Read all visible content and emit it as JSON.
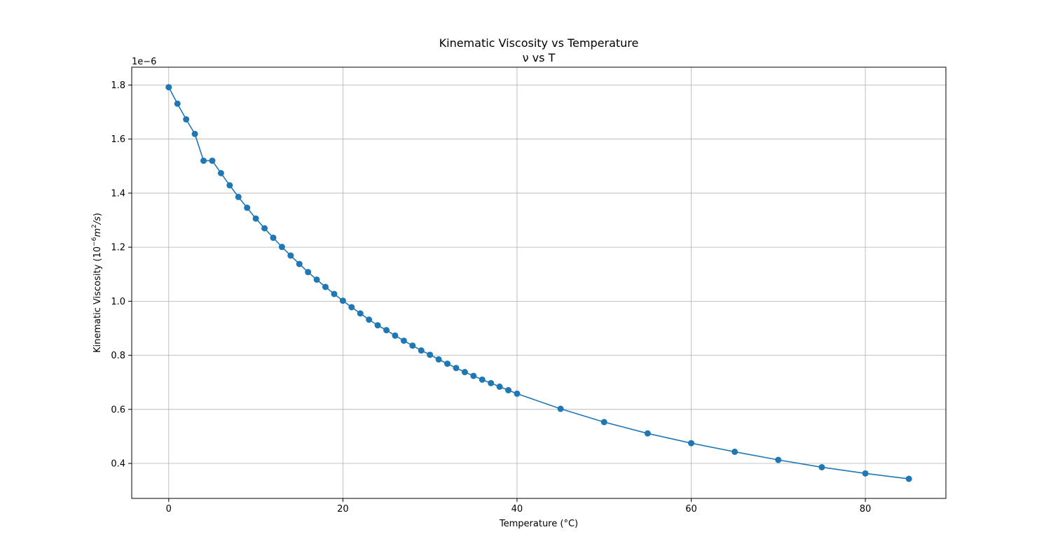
{
  "chart_data": {
    "type": "line",
    "title": "Kinematic Viscosity vs Temperature",
    "subtitle": "ν vs T",
    "xlabel": "Temperature (°C)",
    "ylabel_prefix": "Kinematic Viscosity (",
    "ylabel_math_base": "10",
    "ylabel_math_exp": "−6",
    "ylabel_math_unit": "m",
    "ylabel_math_unit_exp": "2",
    "ylabel_math_tail": "/s",
    "ylabel_suffix": ")",
    "offset_label": "1e−6",
    "xlim": [
      -4.25,
      89.25
    ],
    "ylim": [
      0.2706,
      1.866
    ],
    "xticks": [
      0,
      20,
      40,
      60,
      80
    ],
    "xtick_labels": [
      "0",
      "20",
      "40",
      "60",
      "80"
    ],
    "yticks": [
      0.4,
      0.6,
      0.8,
      1.0,
      1.2,
      1.4,
      1.6,
      1.8
    ],
    "ytick_labels": [
      "0.4",
      "0.6",
      "0.8",
      "1.0",
      "1.2",
      "1.4",
      "1.6",
      "1.8"
    ],
    "grid": true,
    "color": "#1f77b4",
    "marker": "circle",
    "series": [
      {
        "x": [
          0,
          1,
          2,
          3,
          4,
          5,
          6,
          7,
          8,
          9,
          10,
          11,
          12,
          13,
          14,
          15,
          16,
          17,
          18,
          19,
          20,
          21,
          22,
          23,
          24,
          25,
          26,
          27,
          28,
          29,
          30,
          31,
          32,
          33,
          34,
          35,
          36,
          37,
          38,
          39,
          40,
          45,
          50,
          55,
          60,
          65,
          70,
          75,
          80,
          85
        ],
        "y": [
          1.792,
          1.731,
          1.673,
          1.619,
          1.52,
          1.52,
          1.474,
          1.429,
          1.386,
          1.346,
          1.306,
          1.27,
          1.235,
          1.201,
          1.169,
          1.138,
          1.108,
          1.08,
          1.053,
          1.027,
          1.002,
          0.978,
          0.955,
          0.932,
          0.911,
          0.893,
          0.873,
          0.854,
          0.836,
          0.818,
          0.802,
          0.785,
          0.769,
          0.753,
          0.738,
          0.724,
          0.71,
          0.697,
          0.684,
          0.671,
          0.658,
          0.602,
          0.553,
          0.511,
          0.475,
          0.443,
          0.413,
          0.386,
          0.363,
          0.343
        ]
      }
    ]
  }
}
